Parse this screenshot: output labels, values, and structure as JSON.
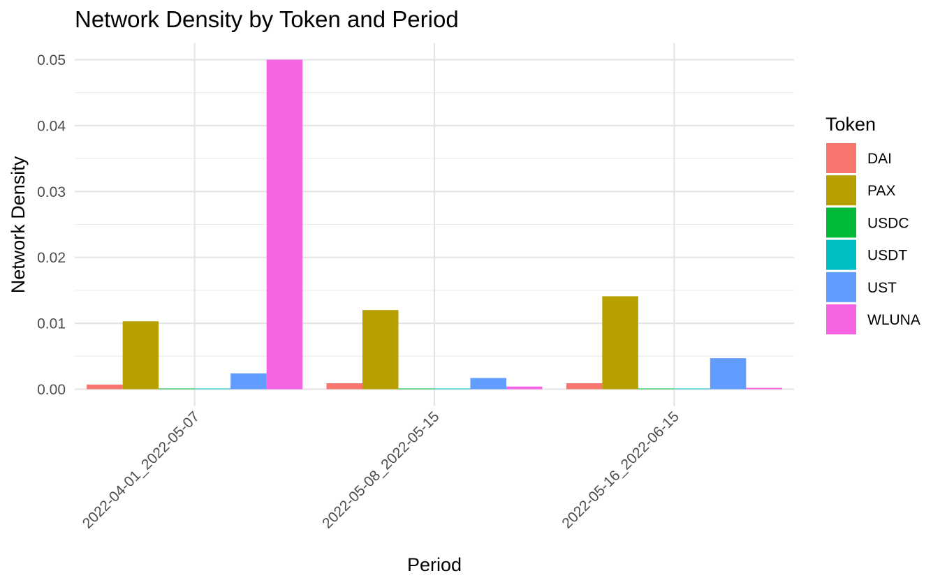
{
  "chart_data": {
    "type": "bar",
    "title": "Network Density by Token and Period",
    "xlabel": "Period",
    "ylabel": "Network Density",
    "legend_title": "Token",
    "legend_position": "right",
    "grid": true,
    "categories": [
      "2022-04-01_2022-05-07",
      "2022-05-08_2022-05-15",
      "2022-05-16_2022-06-15"
    ],
    "y_ticks": [
      "0.00",
      "0.01",
      "0.02",
      "0.03",
      "0.04",
      "0.05"
    ],
    "ylim": [
      -0.0025,
      0.0525
    ],
    "series": [
      {
        "name": "DAI",
        "color": "#F8766D",
        "values": [
          0.0007,
          0.0009,
          0.0009
        ]
      },
      {
        "name": "PAX",
        "color": "#B79F00",
        "values": [
          0.0103,
          0.012,
          0.0141
        ]
      },
      {
        "name": "USDC",
        "color": "#00BA38",
        "values": [
          0.0001,
          0.0001,
          0.0001
        ]
      },
      {
        "name": "USDT",
        "color": "#00BFC4",
        "values": [
          0.0001,
          0.0001,
          0.0001
        ]
      },
      {
        "name": "UST",
        "color": "#619CFF",
        "values": [
          0.0024,
          0.0017,
          0.0047
        ]
      },
      {
        "name": "WLUNA",
        "color": "#F564E3",
        "values": [
          0.05,
          0.0004,
          0.0002
        ]
      }
    ]
  }
}
